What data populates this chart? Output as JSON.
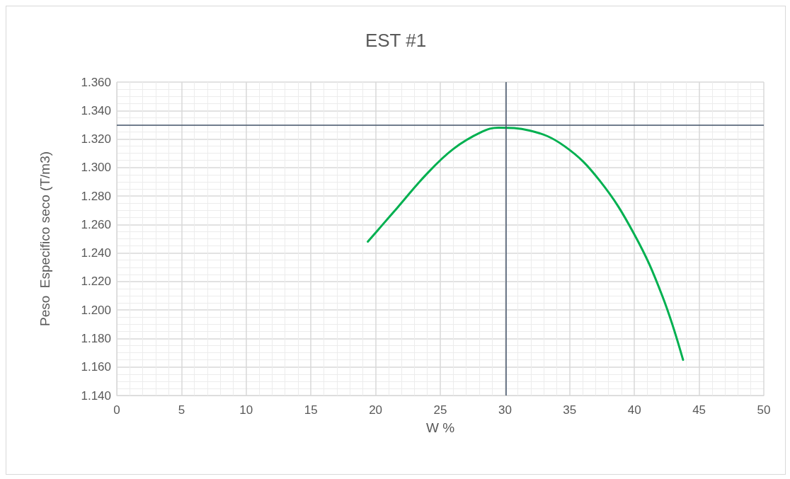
{
  "chart_data": {
    "type": "line",
    "title": "EST #1",
    "xlabel": "W %",
    "ylabel": "Peso  Especifico seco (T/m3)",
    "x": [
      19.4,
      20.5,
      21.7,
      23.9,
      26.0,
      28.2,
      29.5,
      31.9,
      34.6,
      37.3,
      40.0,
      42.15,
      43.76
    ],
    "series": [
      {
        "color": "#00b050",
        "values": [
          1.248,
          1.2595,
          1.272,
          1.295,
          1.313,
          1.325,
          1.328,
          1.326,
          1.315,
          1.291,
          1.253,
          1.21,
          1.165
        ]
      }
    ],
    "xlim": [
      0,
      50
    ],
    "xticks": [
      0,
      5,
      10,
      15,
      20,
      25,
      30,
      35,
      40,
      45,
      50
    ],
    "ylim": [
      1.14,
      1.36
    ],
    "yticks": [
      {
        "value": 1.14,
        "label": "1.140"
      },
      {
        "value": 1.16,
        "label": "1.160"
      },
      {
        "value": 1.18,
        "label": "1.180"
      },
      {
        "value": 1.2,
        "label": "1.200"
      },
      {
        "value": 1.22,
        "label": "1.220"
      },
      {
        "value": 1.24,
        "label": "1.240"
      },
      {
        "value": 1.26,
        "label": "1.260"
      },
      {
        "value": 1.28,
        "label": "1.280"
      },
      {
        "value": 1.3,
        "label": "1.300"
      },
      {
        "value": 1.32,
        "label": "1.320"
      },
      {
        "value": 1.34,
        "label": "1.340"
      },
      {
        "value": 1.36,
        "label": "1.360"
      }
    ],
    "ref_lines": [
      {
        "axis": "x",
        "value": 30.1,
        "color": "#44546a"
      },
      {
        "axis": "y",
        "value": 1.329,
        "color": "#44546a"
      }
    ],
    "grid": true,
    "marker": "none",
    "line_style": "solid"
  }
}
